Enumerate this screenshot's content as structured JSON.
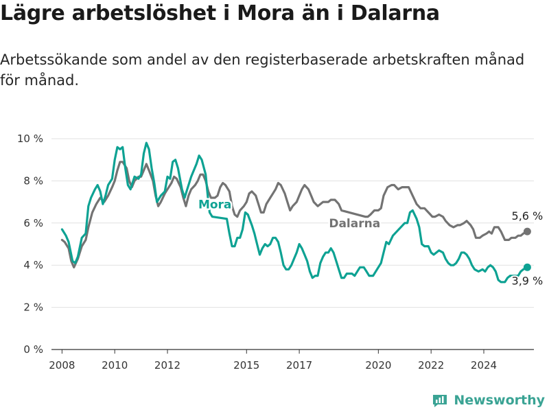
{
  "title": "Lägre arbetslöshet i Mora än i Dalarna",
  "subtitle": "Arbetssökande som andel av den registerbaserade arbetskraften månad för månad.",
  "brand": "Newsworthy",
  "colors": {
    "mora": "#0ea293",
    "dalarna": "#737373",
    "grid": "#e0e0e0",
    "axis": "#333333"
  },
  "chart_data": {
    "type": "line",
    "ylim": [
      0,
      10
    ],
    "xlim": [
      2007.6,
      2025.9
    ],
    "y_ticks": [
      {
        "value": 0,
        "label": "0 %"
      },
      {
        "value": 2,
        "label": "2 %"
      },
      {
        "value": 4,
        "label": "4 %"
      },
      {
        "value": 6,
        "label": "6 %"
      },
      {
        "value": 8,
        "label": "8 %"
      },
      {
        "value": 10,
        "label": "10 %"
      }
    ],
    "x_ticks": [
      {
        "value": 2008,
        "label": "2008"
      },
      {
        "value": 2010,
        "label": "2010"
      },
      {
        "value": 2012,
        "label": "2012"
      },
      {
        "value": 2015,
        "label": "2015"
      },
      {
        "value": 2017,
        "label": "2017"
      },
      {
        "value": 2020,
        "label": "2020"
      },
      {
        "value": 2022,
        "label": "2022"
      },
      {
        "value": 2024,
        "label": "2024"
      }
    ],
    "grid": true,
    "series": [
      {
        "name": "Dalarna",
        "key": "dalarna",
        "end_label": "5,6 %",
        "points": [
          [
            2008.0,
            5.2
          ],
          [
            2008.1,
            5.1
          ],
          [
            2008.25,
            4.8
          ],
          [
            2008.35,
            4.2
          ],
          [
            2008.45,
            3.9
          ],
          [
            2008.6,
            4.3
          ],
          [
            2008.75,
            4.9
          ],
          [
            2008.9,
            5.2
          ],
          [
            2009.0,
            5.8
          ],
          [
            2009.15,
            6.5
          ],
          [
            2009.3,
            6.9
          ],
          [
            2009.45,
            7.2
          ],
          [
            2009.6,
            7.0
          ],
          [
            2009.75,
            7.3
          ],
          [
            2009.9,
            7.7
          ],
          [
            2010.0,
            8.0
          ],
          [
            2010.1,
            8.5
          ],
          [
            2010.2,
            8.9
          ],
          [
            2010.3,
            8.9
          ],
          [
            2010.45,
            8.6
          ],
          [
            2010.55,
            8.0
          ],
          [
            2010.65,
            7.7
          ],
          [
            2010.75,
            8.0
          ],
          [
            2010.9,
            8.2
          ],
          [
            2011.0,
            8.2
          ],
          [
            2011.1,
            8.5
          ],
          [
            2011.2,
            8.8
          ],
          [
            2011.3,
            8.5
          ],
          [
            2011.45,
            8.0
          ],
          [
            2011.55,
            7.3
          ],
          [
            2011.65,
            6.8
          ],
          [
            2011.75,
            7.0
          ],
          [
            2011.9,
            7.4
          ],
          [
            2012.0,
            7.6
          ],
          [
            2012.15,
            7.9
          ],
          [
            2012.25,
            8.2
          ],
          [
            2012.35,
            8.1
          ],
          [
            2012.5,
            7.7
          ],
          [
            2012.6,
            7.2
          ],
          [
            2012.7,
            6.8
          ],
          [
            2012.8,
            7.3
          ],
          [
            2012.9,
            7.6
          ],
          [
            2013.05,
            7.8
          ],
          [
            2013.15,
            8.0
          ],
          [
            2013.25,
            8.3
          ],
          [
            2013.35,
            8.3
          ],
          [
            2013.45,
            8.0
          ],
          [
            2013.55,
            7.5
          ],
          [
            2013.65,
            7.2
          ],
          [
            2013.8,
            7.2
          ],
          [
            2013.9,
            7.3
          ],
          [
            2014.0,
            7.7
          ],
          [
            2014.1,
            7.9
          ],
          [
            2014.2,
            7.8
          ],
          [
            2014.35,
            7.5
          ],
          [
            2014.45,
            6.8
          ],
          [
            2014.55,
            6.4
          ],
          [
            2014.65,
            6.3
          ],
          [
            2014.75,
            6.6
          ],
          [
            2014.9,
            6.8
          ],
          [
            2015.0,
            7.0
          ],
          [
            2015.1,
            7.4
          ],
          [
            2015.2,
            7.5
          ],
          [
            2015.35,
            7.3
          ],
          [
            2015.45,
            6.9
          ],
          [
            2015.55,
            6.5
          ],
          [
            2015.65,
            6.5
          ],
          [
            2015.75,
            6.9
          ],
          [
            2015.9,
            7.2
          ],
          [
            2016.0,
            7.4
          ],
          [
            2016.1,
            7.6
          ],
          [
            2016.2,
            7.9
          ],
          [
            2016.3,
            7.8
          ],
          [
            2016.45,
            7.4
          ],
          [
            2016.55,
            7.0
          ],
          [
            2016.65,
            6.6
          ],
          [
            2016.75,
            6.8
          ],
          [
            2016.9,
            7.0
          ],
          [
            2017.0,
            7.3
          ],
          [
            2017.1,
            7.6
          ],
          [
            2017.2,
            7.8
          ],
          [
            2017.35,
            7.6
          ],
          [
            2017.45,
            7.3
          ],
          [
            2017.55,
            7.0
          ],
          [
            2017.7,
            6.8
          ],
          [
            2017.8,
            6.9
          ],
          [
            2017.9,
            7.0
          ],
          [
            2018.1,
            7.0
          ],
          [
            2018.2,
            7.1
          ],
          [
            2018.35,
            7.1
          ],
          [
            2018.5,
            6.9
          ],
          [
            2018.6,
            6.6
          ],
          [
            2019.5,
            6.3
          ],
          [
            2019.6,
            6.3
          ],
          [
            2019.7,
            6.4
          ],
          [
            2019.85,
            6.6
          ],
          [
            2020.0,
            6.6
          ],
          [
            2020.1,
            6.7
          ],
          [
            2020.2,
            7.3
          ],
          [
            2020.35,
            7.7
          ],
          [
            2020.5,
            7.8
          ],
          [
            2020.6,
            7.8
          ],
          [
            2020.75,
            7.6
          ],
          [
            2020.9,
            7.7
          ],
          [
            2021.05,
            7.7
          ],
          [
            2021.15,
            7.7
          ],
          [
            2021.3,
            7.3
          ],
          [
            2021.45,
            6.9
          ],
          [
            2021.6,
            6.7
          ],
          [
            2021.75,
            6.7
          ],
          [
            2021.9,
            6.5
          ],
          [
            2022.05,
            6.3
          ],
          [
            2022.15,
            6.3
          ],
          [
            2022.3,
            6.4
          ],
          [
            2022.45,
            6.3
          ],
          [
            2022.55,
            6.1
          ],
          [
            2022.7,
            5.9
          ],
          [
            2022.85,
            5.8
          ],
          [
            2023.0,
            5.9
          ],
          [
            2023.1,
            5.9
          ],
          [
            2023.25,
            6.0
          ],
          [
            2023.35,
            6.1
          ],
          [
            2023.5,
            5.9
          ],
          [
            2023.6,
            5.7
          ],
          [
            2023.7,
            5.3
          ],
          [
            2023.85,
            5.3
          ],
          [
            2023.95,
            5.4
          ],
          [
            2024.1,
            5.5
          ],
          [
            2024.2,
            5.6
          ],
          [
            2024.3,
            5.5
          ],
          [
            2024.4,
            5.8
          ],
          [
            2024.55,
            5.8
          ],
          [
            2024.65,
            5.6
          ],
          [
            2024.8,
            5.2
          ],
          [
            2024.95,
            5.2
          ],
          [
            2025.05,
            5.3
          ],
          [
            2025.2,
            5.3
          ],
          [
            2025.3,
            5.4
          ],
          [
            2025.4,
            5.4
          ],
          [
            2025.5,
            5.5
          ],
          [
            2025.65,
            5.6
          ]
        ]
      },
      {
        "name": "Mora",
        "key": "mora",
        "end_label": "3,9 %",
        "points": [
          [
            2008.0,
            5.7
          ],
          [
            2008.15,
            5.4
          ],
          [
            2008.25,
            5.1
          ],
          [
            2008.4,
            4.2
          ],
          [
            2008.5,
            4.1
          ],
          [
            2008.6,
            4.4
          ],
          [
            2008.75,
            5.3
          ],
          [
            2008.9,
            5.5
          ],
          [
            2009.0,
            6.8
          ],
          [
            2009.1,
            7.2
          ],
          [
            2009.25,
            7.6
          ],
          [
            2009.35,
            7.8
          ],
          [
            2009.45,
            7.5
          ],
          [
            2009.55,
            6.9
          ],
          [
            2009.65,
            7.3
          ],
          [
            2009.75,
            7.8
          ],
          [
            2009.9,
            8.1
          ],
          [
            2010.0,
            9.0
          ],
          [
            2010.1,
            9.6
          ],
          [
            2010.2,
            9.5
          ],
          [
            2010.3,
            9.6
          ],
          [
            2010.4,
            8.6
          ],
          [
            2010.5,
            7.8
          ],
          [
            2010.6,
            7.6
          ],
          [
            2010.75,
            8.2
          ],
          [
            2010.9,
            8.1
          ],
          [
            2011.0,
            8.3
          ],
          [
            2011.1,
            9.3
          ],
          [
            2011.2,
            9.8
          ],
          [
            2011.3,
            9.5
          ],
          [
            2011.4,
            8.6
          ],
          [
            2011.5,
            7.9
          ],
          [
            2011.6,
            7.0
          ],
          [
            2011.75,
            7.3
          ],
          [
            2011.9,
            7.5
          ],
          [
            2012.0,
            8.2
          ],
          [
            2012.1,
            8.1
          ],
          [
            2012.2,
            8.9
          ],
          [
            2012.3,
            9.0
          ],
          [
            2012.4,
            8.6
          ],
          [
            2012.55,
            7.6
          ],
          [
            2012.65,
            7.2
          ],
          [
            2012.75,
            7.6
          ],
          [
            2012.9,
            8.2
          ],
          [
            2013.0,
            8.5
          ],
          [
            2013.1,
            8.8
          ],
          [
            2013.2,
            9.2
          ],
          [
            2013.3,
            9.0
          ],
          [
            2013.45,
            8.3
          ],
          [
            2013.55,
            7.0
          ],
          [
            2013.6,
            6.5
          ],
          [
            2013.7,
            6.3
          ],
          [
            2014.25,
            6.2
          ],
          [
            2014.35,
            5.5
          ],
          [
            2014.45,
            4.9
          ],
          [
            2014.55,
            4.9
          ],
          [
            2014.65,
            5.3
          ],
          [
            2014.75,
            5.3
          ],
          [
            2014.85,
            5.7
          ],
          [
            2014.95,
            6.5
          ],
          [
            2015.05,
            6.4
          ],
          [
            2015.2,
            5.9
          ],
          [
            2015.3,
            5.5
          ],
          [
            2015.4,
            5.0
          ],
          [
            2015.5,
            4.5
          ],
          [
            2015.6,
            4.8
          ],
          [
            2015.7,
            5.0
          ],
          [
            2015.8,
            4.9
          ],
          [
            2015.9,
            5.0
          ],
          [
            2016.0,
            5.3
          ],
          [
            2016.1,
            5.3
          ],
          [
            2016.2,
            5.1
          ],
          [
            2016.3,
            4.6
          ],
          [
            2016.4,
            4.0
          ],
          [
            2016.5,
            3.8
          ],
          [
            2016.6,
            3.8
          ],
          [
            2016.7,
            4.0
          ],
          [
            2016.8,
            4.3
          ],
          [
            2016.9,
            4.6
          ],
          [
            2017.0,
            5.0
          ],
          [
            2017.1,
            4.8
          ],
          [
            2017.2,
            4.5
          ],
          [
            2017.3,
            4.2
          ],
          [
            2017.4,
            3.7
          ],
          [
            2017.5,
            3.4
          ],
          [
            2017.6,
            3.5
          ],
          [
            2017.7,
            3.5
          ],
          [
            2017.8,
            4.1
          ],
          [
            2017.9,
            4.4
          ],
          [
            2018.0,
            4.6
          ],
          [
            2018.1,
            4.6
          ],
          [
            2018.2,
            4.8
          ],
          [
            2018.3,
            4.6
          ],
          [
            2018.4,
            4.2
          ],
          [
            2018.5,
            3.8
          ],
          [
            2018.6,
            3.4
          ],
          [
            2018.7,
            3.4
          ],
          [
            2018.8,
            3.6
          ],
          [
            2018.9,
            3.6
          ],
          [
            2019.0,
            3.6
          ],
          [
            2019.1,
            3.5
          ],
          [
            2019.2,
            3.7
          ],
          [
            2019.3,
            3.9
          ],
          [
            2019.45,
            3.9
          ],
          [
            2019.55,
            3.7
          ],
          [
            2019.65,
            3.5
          ],
          [
            2019.8,
            3.5
          ],
          [
            2019.9,
            3.7
          ],
          [
            2020.0,
            3.9
          ],
          [
            2020.1,
            4.1
          ],
          [
            2020.2,
            4.6
          ],
          [
            2020.3,
            5.1
          ],
          [
            2020.4,
            5.0
          ],
          [
            2020.55,
            5.4
          ],
          [
            2021.0,
            6.0
          ],
          [
            2021.1,
            6.0
          ],
          [
            2021.2,
            6.5
          ],
          [
            2021.3,
            6.6
          ],
          [
            2021.45,
            6.2
          ],
          [
            2021.55,
            5.8
          ],
          [
            2021.65,
            5.0
          ],
          [
            2021.75,
            4.9
          ],
          [
            2021.9,
            4.9
          ],
          [
            2022.0,
            4.6
          ],
          [
            2022.1,
            4.5
          ],
          [
            2022.2,
            4.6
          ],
          [
            2022.3,
            4.7
          ],
          [
            2022.45,
            4.6
          ],
          [
            2022.55,
            4.3
          ],
          [
            2022.65,
            4.1
          ],
          [
            2022.75,
            4.0
          ],
          [
            2022.85,
            4.0
          ],
          [
            2022.95,
            4.1
          ],
          [
            2023.05,
            4.3
          ],
          [
            2023.15,
            4.6
          ],
          [
            2023.25,
            4.6
          ],
          [
            2023.35,
            4.5
          ],
          [
            2023.45,
            4.3
          ],
          [
            2023.55,
            4.0
          ],
          [
            2023.65,
            3.8
          ],
          [
            2023.8,
            3.7
          ],
          [
            2023.95,
            3.8
          ],
          [
            2024.05,
            3.7
          ],
          [
            2024.15,
            3.9
          ],
          [
            2024.25,
            4.0
          ],
          [
            2024.35,
            3.9
          ],
          [
            2024.45,
            3.7
          ],
          [
            2024.55,
            3.3
          ],
          [
            2024.65,
            3.2
          ],
          [
            2024.8,
            3.2
          ],
          [
            2024.9,
            3.4
          ],
          [
            2025.0,
            3.5
          ],
          [
            2025.15,
            3.5
          ],
          [
            2025.3,
            3.5
          ],
          [
            2025.4,
            3.7
          ],
          [
            2025.5,
            3.8
          ],
          [
            2025.65,
            3.9
          ]
        ]
      }
    ]
  }
}
